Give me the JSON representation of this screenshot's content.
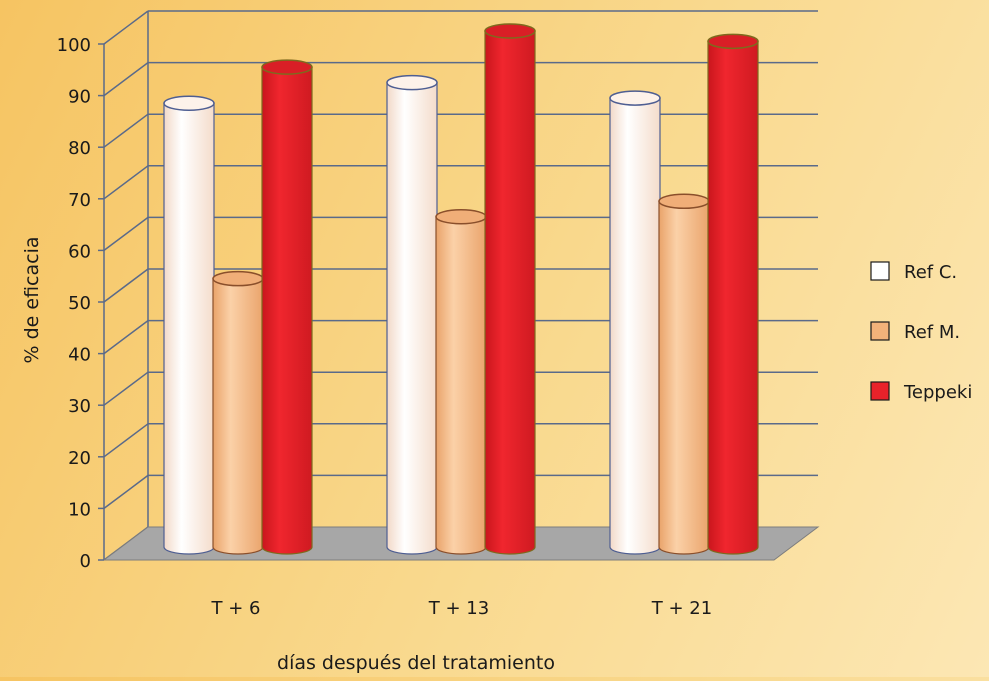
{
  "chart_data": {
    "type": "bar",
    "title": "",
    "xlabel": "días después del tratamiento",
    "ylabel": "% de eficacia",
    "categories": [
      "T + 6",
      "T + 13",
      "T + 21"
    ],
    "ylim": [
      0,
      100
    ],
    "yticks": [
      0,
      10,
      20,
      30,
      40,
      50,
      60,
      70,
      80,
      90,
      100
    ],
    "grid": true,
    "legend_position": "right",
    "series": [
      {
        "name": "Ref C.",
        "values": [
          86,
          90,
          87
        ],
        "color": "#fbe9dc"
      },
      {
        "name": "Ref M.",
        "values": [
          52,
          64,
          67
        ],
        "color": "#f3b27a"
      },
      {
        "name": "Teppeki",
        "values": [
          93,
          100,
          98
        ],
        "color": "#e8222a"
      }
    ]
  }
}
